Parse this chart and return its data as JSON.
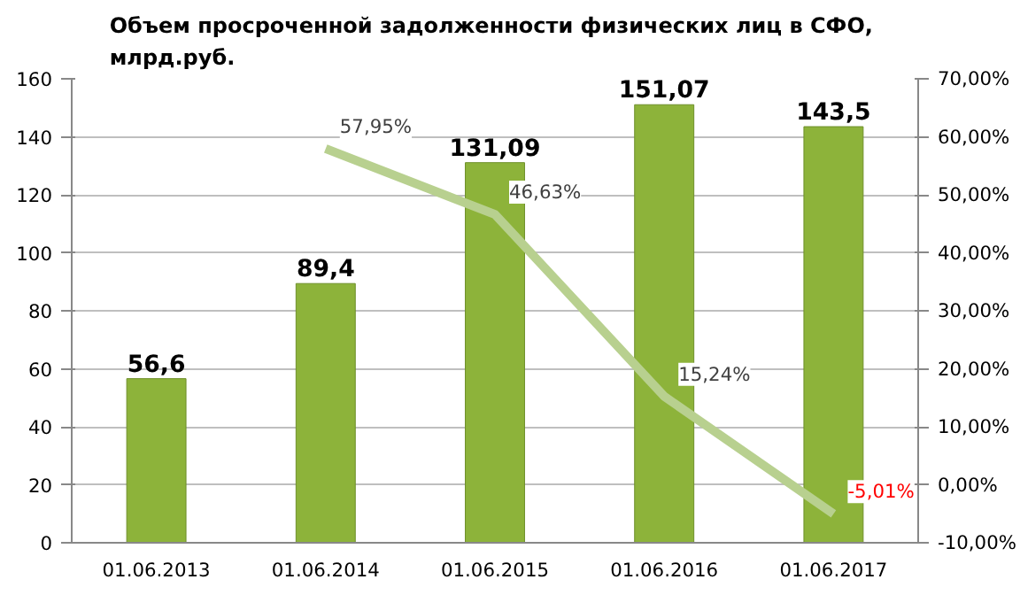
{
  "chart_data": {
    "type": "bar",
    "title": "Объем просроченной задолженности физических  лиц в СФО,\nмлрд.руб.",
    "categories": [
      "01.06.2013",
      "01.06.2014",
      "01.06.2015",
      "01.06.2016",
      "01.06.2017"
    ],
    "series": [
      {
        "color": "#8db33a",
        "values": [
          56.6,
          89.4,
          131.09,
          151.07,
          143.5
        ],
        "value_labels": [
          "56,6",
          "89,4",
          "131,09",
          "151,07",
          "143,5"
        ]
      },
      {
        "type": "line",
        "axis": "y2",
        "color": "#b8d08f",
        "values": [
          null,
          57.95,
          46.63,
          15.24,
          -5.01
        ],
        "value_labels": [
          null,
          "57,95%",
          "46,63%",
          "15,24%",
          "-5,01%"
        ]
      }
    ],
    "ylim": [
      0,
      160
    ],
    "yticks": [
      0,
      20,
      40,
      60,
      80,
      100,
      120,
      140,
      160
    ],
    "y2lim": [
      -10,
      70
    ],
    "y2ticks": [
      {
        "value": -10,
        "label": "-10,00%"
      },
      {
        "value": 0,
        "label": "0,00%"
      },
      {
        "value": 10,
        "label": "10,00%"
      },
      {
        "value": 20,
        "label": "20,00%"
      },
      {
        "value": 30,
        "label": "30,00%"
      },
      {
        "value": 40,
        "label": "40,00%"
      },
      {
        "value": 50,
        "label": "50,00%"
      },
      {
        "value": 60,
        "label": "60,00%"
      },
      {
        "value": 70,
        "label": "70,00%"
      }
    ],
    "grid": "y",
    "line_style": "solid",
    "marker": "none"
  }
}
